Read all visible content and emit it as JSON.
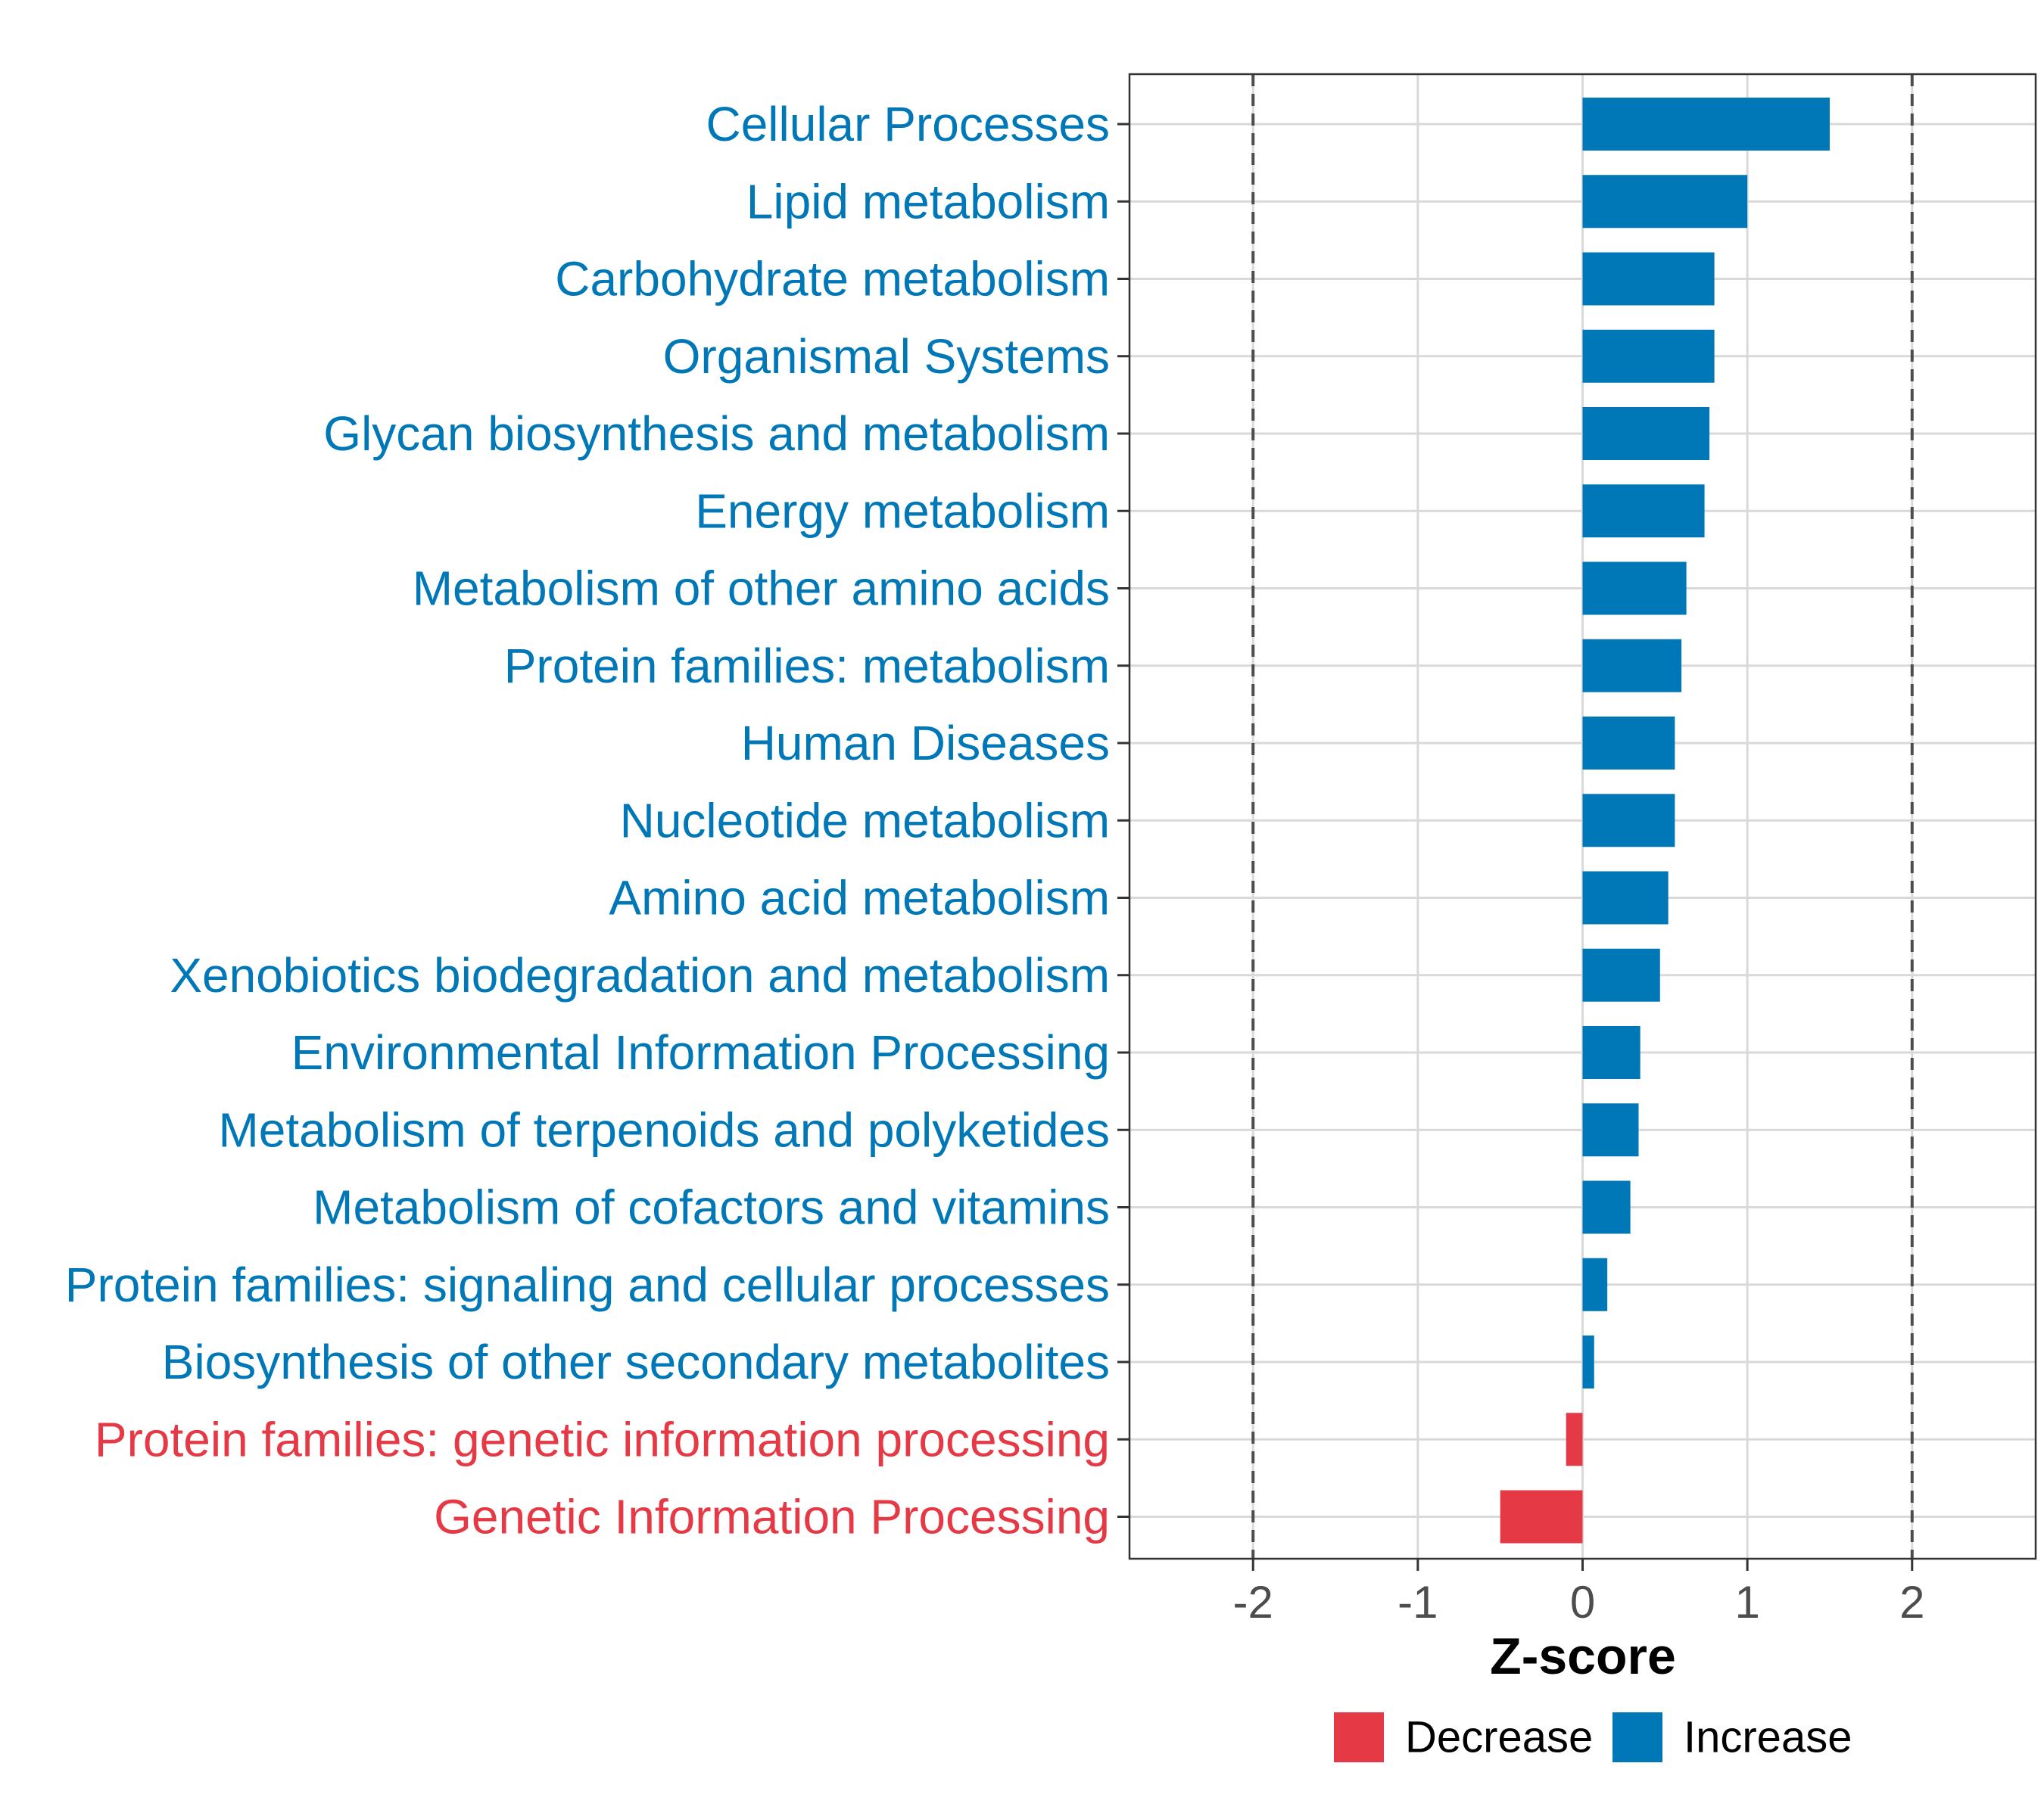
{
  "colors": {
    "increase": "#0077b6",
    "decrease": "#e63946",
    "grid": "#d9d9d9",
    "panel_border": "#333333",
    "threshold_line": "#4d4d4d"
  },
  "chart_data": {
    "type": "bar",
    "orientation": "horizontal",
    "xlabel": "Z-score",
    "xlim": [
      -2.75,
      2.75
    ],
    "xticks": [
      -2,
      -1,
      0,
      1,
      2
    ],
    "xtick_labels": [
      "-2",
      "-1",
      "0",
      "1",
      "2"
    ],
    "threshold_lines": [
      -2,
      2
    ],
    "grid": true,
    "legend_position": "bottom",
    "legend": [
      {
        "label": "Decrease",
        "color_key": "decrease"
      },
      {
        "label": "Increase",
        "color_key": "increase"
      }
    ],
    "categories": [
      "Cellular Processes",
      "Lipid metabolism",
      "Carbohydrate metabolism",
      "Organismal Systems",
      "Glycan biosynthesis and metabolism",
      "Energy metabolism",
      "Metabolism of other amino acids",
      "Protein families: metabolism",
      "Human Diseases",
      "Nucleotide metabolism",
      "Amino acid metabolism",
      "Xenobiotics biodegradation and metabolism",
      "Environmental Information Processing",
      "Metabolism of terpenoids and polyketides",
      "Metabolism of cofactors and vitamins",
      "Protein families: signaling and cellular processes",
      "Biosynthesis of other secondary metabolites",
      "Protein families: genetic information processing",
      "Genetic Information Processing"
    ],
    "values": [
      1.5,
      1.0,
      0.8,
      0.8,
      0.77,
      0.74,
      0.63,
      0.6,
      0.56,
      0.56,
      0.52,
      0.47,
      0.35,
      0.34,
      0.29,
      0.15,
      0.07,
      -0.1,
      -0.5
    ]
  }
}
